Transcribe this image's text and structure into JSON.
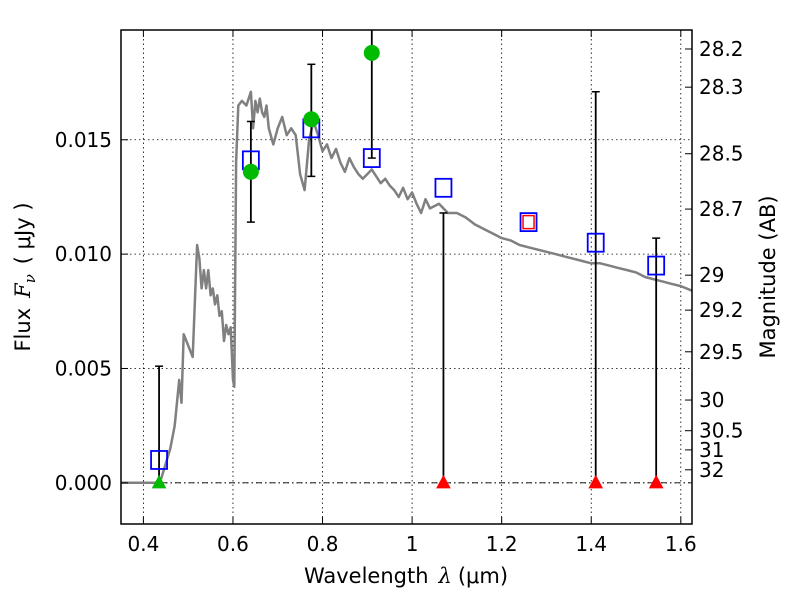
{
  "chart_data": {
    "type": "scatter",
    "xlabel_prefix": "Wavelength",
    "xlabel_symbol": "λ",
    "xlabel_unit": "(μm)",
    "ylabel_prefix": "Flux",
    "ylabel_symbol": "F",
    "ylabel_subscript": "ν",
    "ylabel_unit": "( μJy )",
    "y2label": "Magnitude (AB)",
    "xlim": [
      0.35,
      1.625
    ],
    "ylim": [
      -0.0018,
      0.0198
    ],
    "grid": true,
    "x_ticks": [
      0.4,
      0.6,
      0.8,
      1.0,
      1.2,
      1.4,
      1.6
    ],
    "x_tick_labels": [
      "0.4",
      "0.6",
      "0.8",
      "1",
      "1.2",
      "1.4",
      "1.6"
    ],
    "y_ticks": [
      0.0,
      0.005,
      0.01,
      0.015
    ],
    "y_tick_labels": [
      "0.000",
      "0.005",
      "0.010",
      "0.015"
    ],
    "mag_ticks": [
      {
        "label": "28.2",
        "flux": 0.01897
      },
      {
        "label": "28.3",
        "flux": 0.0173
      },
      {
        "label": "28.5",
        "flux": 0.01439
      },
      {
        "label": "28.7",
        "flux": 0.01197
      },
      {
        "label": "29",
        "flux": 0.00908
      },
      {
        "label": "29.2",
        "flux": 0.00755
      },
      {
        "label": "29.5",
        "flux": 0.00573
      },
      {
        "label": "30",
        "flux": 0.00362
      },
      {
        "label": "30.5",
        "flux": 0.00228
      },
      {
        "label": "31",
        "flux": 0.00144
      },
      {
        "label": "32",
        "flux": 0.00057
      }
    ],
    "sed_model": {
      "color": "#808080",
      "x": [
        0.35,
        0.43,
        0.44,
        0.46,
        0.47,
        0.48,
        0.485,
        0.49,
        0.5,
        0.51,
        0.52,
        0.525,
        0.53,
        0.535,
        0.54,
        0.545,
        0.55,
        0.555,
        0.56,
        0.565,
        0.57,
        0.575,
        0.58,
        0.585,
        0.59,
        0.595,
        0.6,
        0.603,
        0.607,
        0.612,
        0.62,
        0.63,
        0.64,
        0.645,
        0.65,
        0.655,
        0.66,
        0.665,
        0.67,
        0.675,
        0.68,
        0.69,
        0.7,
        0.71,
        0.72,
        0.73,
        0.74,
        0.75,
        0.76,
        0.77,
        0.78,
        0.79,
        0.8,
        0.81,
        0.82,
        0.83,
        0.84,
        0.85,
        0.86,
        0.87,
        0.88,
        0.89,
        0.9,
        0.91,
        0.92,
        0.93,
        0.94,
        0.95,
        0.96,
        0.97,
        0.98,
        0.99,
        1.0,
        1.01,
        1.02,
        1.03,
        1.04,
        1.06,
        1.08,
        1.1,
        1.12,
        1.14,
        1.16,
        1.18,
        1.2,
        1.22,
        1.24,
        1.26,
        1.28,
        1.3,
        1.32,
        1.34,
        1.36,
        1.38,
        1.4,
        1.42,
        1.44,
        1.46,
        1.48,
        1.5,
        1.52,
        1.54,
        1.56,
        1.58,
        1.6,
        1.625
      ],
      "y": [
        0.0,
        0.0,
        0.0002,
        0.0015,
        0.0025,
        0.0045,
        0.0035,
        0.0065,
        0.006,
        0.0055,
        0.0104,
        0.0098,
        0.0085,
        0.0093,
        0.0085,
        0.0093,
        0.0082,
        0.0085,
        0.0078,
        0.0082,
        0.0073,
        0.0075,
        0.0062,
        0.0069,
        0.0065,
        0.0068,
        0.0045,
        0.0042,
        0.014,
        0.0165,
        0.0167,
        0.0165,
        0.0171,
        0.0155,
        0.0167,
        0.0162,
        0.0168,
        0.0162,
        0.016,
        0.0165,
        0.0155,
        0.0148,
        0.0155,
        0.016,
        0.0152,
        0.0155,
        0.0152,
        0.0135,
        0.0128,
        0.015,
        0.0158,
        0.0152,
        0.0145,
        0.0148,
        0.0142,
        0.0146,
        0.014,
        0.0136,
        0.0142,
        0.0138,
        0.0135,
        0.0133,
        0.0135,
        0.0137,
        0.0134,
        0.0131,
        0.0133,
        0.013,
        0.0128,
        0.0125,
        0.0129,
        0.0124,
        0.0127,
        0.0122,
        0.0118,
        0.0124,
        0.012,
        0.0122,
        0.0118,
        0.0118,
        0.0116,
        0.0113,
        0.0111,
        0.0109,
        0.0107,
        0.0106,
        0.0104,
        0.0103,
        0.0102,
        0.0101,
        0.01,
        0.0099,
        0.0098,
        0.0097,
        0.0096,
        0.0096,
        0.0095,
        0.0094,
        0.0093,
        0.0092,
        0.009,
        0.0089,
        0.0088,
        0.0087,
        0.0086,
        0.0084
      ]
    },
    "model_fluxes": {
      "marker": "open-square",
      "color": "#0000ff",
      "points": [
        {
          "x": 0.435,
          "y": 0.001
        },
        {
          "x": 0.64,
          "y": 0.0141
        },
        {
          "x": 0.775,
          "y": 0.0155
        },
        {
          "x": 0.91,
          "y": 0.0142
        },
        {
          "x": 1.07,
          "y": 0.0129
        },
        {
          "x": 1.41,
          "y": 0.0105
        },
        {
          "x": 1.545,
          "y": 0.0095
        }
      ]
    },
    "highlighted_model_flux": {
      "marker": "open-square-red-inner",
      "color": "#0000ff",
      "inner_color": "#ff0000",
      "x": 1.26,
      "y": 0.0114
    },
    "detections": {
      "marker": "filled-circle",
      "color": "#00bb00",
      "points": [
        {
          "x": 0.64,
          "y": 0.0136,
          "err_low": 0.0114,
          "err_high": 0.0158
        },
        {
          "x": 0.775,
          "y": 0.0159,
          "err_low": 0.0134,
          "err_high": 0.0183
        },
        {
          "x": 0.91,
          "y": 0.0188,
          "err_low": 0.0142,
          "err_high": 0.0198
        }
      ]
    },
    "upper_limits": {
      "marker": "triangle",
      "points": [
        {
          "x": 0.435,
          "y": 0.0,
          "err_high": 0.0051,
          "color": "#00bb00"
        },
        {
          "x": 1.07,
          "y": 0.0,
          "err_high": 0.0118,
          "color": "#ff0000"
        },
        {
          "x": 1.41,
          "y": 0.0,
          "err_high": 0.0171,
          "color": "#ff0000"
        },
        {
          "x": 1.545,
          "y": 0.0,
          "err_high": 0.0107,
          "color": "#ff0000"
        }
      ]
    },
    "zero_line_style": "dash-dot"
  }
}
